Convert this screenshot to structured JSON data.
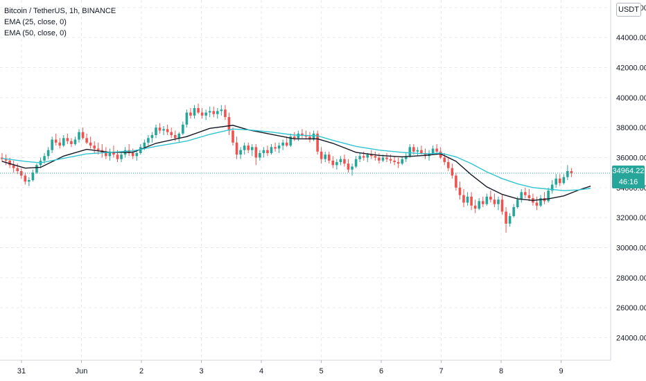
{
  "legend": {
    "symbol": "Bitcoin / TetherUS, 1h, BINANCE",
    "ema25": "EMA (25, close, 0)",
    "ema50": "EMA (50, close, 0)"
  },
  "currency": "USDT",
  "last_price": {
    "value": "34964.22",
    "countdown": "46:16"
  },
  "colors": {
    "up": "#26a69a",
    "down": "#ef5350",
    "ema25": "#131722",
    "ema50": "#2ec4d0",
    "grid": "#e8eaed",
    "axis_text": "#131722",
    "last_price_line": "#26a69a"
  },
  "chart_data": {
    "type": "candlestick",
    "title": "Bitcoin / TetherUS, 1h, BINANCE",
    "ylim": [
      22500,
      46500
    ],
    "y_ticks": [
      "24000.00",
      "26000.00",
      "28000.00",
      "30000.00",
      "32000.00",
      "34000.00",
      "36000.00",
      "38000.00",
      "40000.00",
      "42000.00",
      "44000.00",
      "46000.00"
    ],
    "x_ticks": [
      {
        "label": "31",
        "day": 0
      },
      {
        "label": "Jun",
        "day": 1
      },
      {
        "label": "2",
        "day": 2
      },
      {
        "label": "3",
        "day": 3
      },
      {
        "label": "4",
        "day": 4
      },
      {
        "label": "5",
        "day": 5
      },
      {
        "label": "6",
        "day": 6
      },
      {
        "label": "7",
        "day": 7
      },
      {
        "label": "8",
        "day": 8
      },
      {
        "label": "9",
        "day": 9
      }
    ],
    "last_price": 34964.22,
    "candles": [
      [
        36000,
        36300,
        35700,
        35900
      ],
      [
        35900,
        36200,
        35500,
        35800
      ],
      [
        35800,
        36000,
        35300,
        35500
      ],
      [
        35500,
        35800,
        35000,
        35300
      ],
      [
        35300,
        35600,
        34900,
        35100
      ],
      [
        35100,
        35300,
        34600,
        34800
      ],
      [
        34800,
        35000,
        34200,
        34400
      ],
      [
        34400,
        34700,
        34100,
        34500
      ],
      [
        34500,
        35200,
        34400,
        35000
      ],
      [
        35000,
        35600,
        34900,
        35500
      ],
      [
        35500,
        36000,
        35300,
        35800
      ],
      [
        35800,
        36300,
        35600,
        36100
      ],
      [
        36100,
        36700,
        35900,
        36500
      ],
      [
        36500,
        37400,
        36300,
        37200
      ],
      [
        37200,
        37600,
        36800,
        37000
      ],
      [
        37000,
        37300,
        36600,
        36800
      ],
      [
        36800,
        37500,
        36700,
        37300
      ],
      [
        37300,
        37600,
        36900,
        37100
      ],
      [
        37100,
        37300,
        36700,
        36900
      ],
      [
        36900,
        37400,
        36800,
        37200
      ],
      [
        37200,
        37900,
        37000,
        37700
      ],
      [
        37700,
        38000,
        37200,
        37300
      ],
      [
        37300,
        37600,
        36900,
        37000
      ],
      [
        37000,
        37400,
        36600,
        36800
      ],
      [
        36800,
        37100,
        36300,
        36600
      ],
      [
        36600,
        37000,
        36200,
        36500
      ],
      [
        36500,
        36900,
        36000,
        36300
      ],
      [
        36300,
        36700,
        35900,
        36100
      ],
      [
        36100,
        36600,
        35800,
        36400
      ],
      [
        36400,
        36800,
        36000,
        36200
      ],
      [
        36200,
        36500,
        35700,
        35900
      ],
      [
        35900,
        36400,
        35700,
        36200
      ],
      [
        36200,
        36700,
        36000,
        36500
      ],
      [
        36500,
        36900,
        36100,
        36300
      ],
      [
        36300,
        36600,
        35900,
        36100
      ],
      [
        36100,
        36500,
        35800,
        36300
      ],
      [
        36300,
        36900,
        36200,
        36700
      ],
      [
        36700,
        37200,
        36500,
        37000
      ],
      [
        37000,
        37500,
        36800,
        37300
      ],
      [
        37300,
        37700,
        37000,
        37500
      ],
      [
        37500,
        38200,
        37300,
        38000
      ],
      [
        38000,
        38300,
        37600,
        37800
      ],
      [
        37800,
        38100,
        37500,
        37900
      ],
      [
        37900,
        38200,
        37500,
        37700
      ],
      [
        37700,
        38000,
        37300,
        37500
      ],
      [
        37500,
        37800,
        37100,
        37300
      ],
      [
        37300,
        37700,
        37000,
        37600
      ],
      [
        37600,
        38400,
        37500,
        38200
      ],
      [
        38200,
        39200,
        38000,
        39000
      ],
      [
        39000,
        39300,
        38600,
        38800
      ],
      [
        38800,
        39500,
        38600,
        39300
      ],
      [
        39300,
        39600,
        38900,
        39000
      ],
      [
        39000,
        39300,
        38600,
        38800
      ],
      [
        38800,
        39200,
        38500,
        39000
      ],
      [
        39000,
        39400,
        38700,
        39100
      ],
      [
        39100,
        39400,
        38700,
        38900
      ],
      [
        38900,
        39300,
        38600,
        39100
      ],
      [
        39100,
        39500,
        38800,
        39200
      ],
      [
        39200,
        39500,
        38500,
        38700
      ],
      [
        38700,
        39000,
        37500,
        37800
      ],
      [
        37800,
        38000,
        36800,
        37000
      ],
      [
        37000,
        37400,
        35900,
        36200
      ],
      [
        36200,
        36700,
        35900,
        36500
      ],
      [
        36500,
        37000,
        36200,
        36800
      ],
      [
        36800,
        37000,
        36300,
        36500
      ],
      [
        36500,
        36900,
        36100,
        36700
      ],
      [
        36700,
        36900,
        35500,
        36000
      ],
      [
        36000,
        36500,
        35800,
        36300
      ],
      [
        36300,
        36700,
        36000,
        36500
      ],
      [
        36500,
        36800,
        36100,
        36300
      ],
      [
        36300,
        36900,
        36200,
        36700
      ],
      [
        36700,
        37000,
        36400,
        36600
      ],
      [
        36600,
        37000,
        36300,
        36800
      ],
      [
        36800,
        37200,
        36500,
        37000
      ],
      [
        37000,
        37400,
        36700,
        36800
      ],
      [
        36800,
        37600,
        36700,
        37400
      ],
      [
        37400,
        37700,
        37100,
        37300
      ],
      [
        37300,
        37800,
        37100,
        37600
      ],
      [
        37600,
        37900,
        37300,
        37500
      ],
      [
        37500,
        37800,
        37200,
        37400
      ],
      [
        37400,
        37700,
        37000,
        37200
      ],
      [
        37200,
        37800,
        37100,
        37600
      ],
      [
        37600,
        37800,
        36200,
        36400
      ],
      [
        36400,
        36700,
        35600,
        35900
      ],
      [
        35900,
        36400,
        35700,
        36200
      ],
      [
        36200,
        36400,
        35600,
        35800
      ],
      [
        35800,
        36100,
        35300,
        35500
      ],
      [
        35500,
        35900,
        35200,
        35700
      ],
      [
        35700,
        36100,
        35500,
        35900
      ],
      [
        35900,
        36200,
        35400,
        35600
      ],
      [
        35600,
        35900,
        35000,
        35200
      ],
      [
        35200,
        35600,
        34800,
        35400
      ],
      [
        35400,
        36100,
        35300,
        35900
      ],
      [
        35900,
        36300,
        35700,
        36100
      ],
      [
        36100,
        36400,
        35800,
        36000
      ],
      [
        36000,
        36300,
        35700,
        36200
      ],
      [
        36200,
        36500,
        35900,
        36100
      ],
      [
        36100,
        36400,
        35800,
        36000
      ],
      [
        36000,
        36300,
        35600,
        35800
      ],
      [
        35800,
        36200,
        35700,
        36000
      ],
      [
        36000,
        36300,
        35700,
        35900
      ],
      [
        35900,
        36200,
        35600,
        35800
      ],
      [
        35800,
        36100,
        35500,
        35700
      ],
      [
        35700,
        36000,
        35300,
        35600
      ],
      [
        35600,
        36100,
        35500,
        35900
      ],
      [
        35900,
        36300,
        35700,
        36100
      ],
      [
        36100,
        36900,
        36000,
        36700
      ],
      [
        36700,
        36900,
        36200,
        36400
      ],
      [
        36400,
        36700,
        36100,
        36500
      ],
      [
        36500,
        36800,
        36200,
        36300
      ],
      [
        36300,
        36600,
        35900,
        36100
      ],
      [
        36100,
        36500,
        35800,
        36300
      ],
      [
        36300,
        36800,
        36200,
        36600
      ],
      [
        36600,
        36900,
        36300,
        36400
      ],
      [
        36400,
        36700,
        35900,
        36000
      ],
      [
        36000,
        36300,
        35500,
        35700
      ],
      [
        35700,
        36000,
        35100,
        35300
      ],
      [
        35300,
        35600,
        34600,
        34800
      ],
      [
        34800,
        35000,
        33800,
        34000
      ],
      [
        34000,
        34400,
        33200,
        33500
      ],
      [
        33500,
        33900,
        32700,
        33000
      ],
      [
        33000,
        33700,
        32800,
        33400
      ],
      [
        33400,
        33700,
        32500,
        32800
      ],
      [
        32800,
        33200,
        32300,
        32600
      ],
      [
        32600,
        33300,
        32500,
        33100
      ],
      [
        33100,
        33400,
        32700,
        32900
      ],
      [
        32900,
        33600,
        32800,
        33400
      ],
      [
        33400,
        33800,
        33000,
        33200
      ],
      [
        33200,
        33600,
        32700,
        32900
      ],
      [
        32900,
        33400,
        32500,
        33200
      ],
      [
        33200,
        33500,
        32200,
        32400
      ],
      [
        32400,
        32700,
        31000,
        31600
      ],
      [
        31600,
        32300,
        31400,
        32100
      ],
      [
        32100,
        32900,
        32000,
        32700
      ],
      [
        32700,
        33400,
        32600,
        33200
      ],
      [
        33200,
        33900,
        33000,
        33700
      ],
      [
        33700,
        34000,
        33300,
        33500
      ],
      [
        33500,
        33900,
        33100,
        33300
      ],
      [
        33300,
        33600,
        32800,
        33000
      ],
      [
        33000,
        33400,
        32500,
        32800
      ],
      [
        32800,
        33500,
        32700,
        33300
      ],
      [
        33300,
        33700,
        32900,
        33100
      ],
      [
        33100,
        34000,
        33000,
        33800
      ],
      [
        33800,
        34500,
        33600,
        34200
      ],
      [
        34200,
        34900,
        34000,
        34600
      ],
      [
        34600,
        34900,
        34100,
        34300
      ],
      [
        34300,
        34900,
        34200,
        34700
      ],
      [
        34700,
        35500,
        34500,
        35100
      ],
      [
        35100,
        35300,
        34700,
        34964
      ]
    ],
    "series": [
      {
        "name": "EMA (25, close, 0)",
        "points": [
          [
            0,
            35750
          ],
          [
            6,
            35300
          ],
          [
            10,
            35350
          ],
          [
            16,
            36100
          ],
          [
            22,
            36550
          ],
          [
            28,
            36350
          ],
          [
            34,
            36350
          ],
          [
            40,
            36950
          ],
          [
            48,
            37400
          ],
          [
            54,
            37950
          ],
          [
            60,
            38150
          ],
          [
            64,
            37850
          ],
          [
            70,
            37550
          ],
          [
            76,
            37250
          ],
          [
            82,
            37250
          ],
          [
            86,
            36950
          ],
          [
            92,
            36350
          ],
          [
            98,
            36150
          ],
          [
            104,
            36050
          ],
          [
            110,
            36150
          ],
          [
            114,
            36250
          ],
          [
            118,
            35750
          ],
          [
            122,
            34850
          ],
          [
            126,
            34050
          ],
          [
            130,
            33550
          ],
          [
            134,
            33250
          ],
          [
            138,
            33150
          ],
          [
            142,
            33250
          ],
          [
            146,
            33450
          ],
          [
            150,
            33850
          ],
          [
            153,
            34100
          ]
        ]
      },
      {
        "name": "EMA (50, close, 0)",
        "points": [
          [
            0,
            35950
          ],
          [
            6,
            35750
          ],
          [
            10,
            35650
          ],
          [
            16,
            35950
          ],
          [
            22,
            36250
          ],
          [
            28,
            36350
          ],
          [
            34,
            36450
          ],
          [
            40,
            36750
          ],
          [
            48,
            37100
          ],
          [
            54,
            37550
          ],
          [
            60,
            37900
          ],
          [
            64,
            37850
          ],
          [
            70,
            37700
          ],
          [
            76,
            37500
          ],
          [
            82,
            37450
          ],
          [
            86,
            37150
          ],
          [
            92,
            36750
          ],
          [
            98,
            36500
          ],
          [
            104,
            36350
          ],
          [
            110,
            36250
          ],
          [
            114,
            36300
          ],
          [
            118,
            36050
          ],
          [
            122,
            35600
          ],
          [
            126,
            35050
          ],
          [
            130,
            34600
          ],
          [
            134,
            34250
          ],
          [
            138,
            34000
          ],
          [
            142,
            33900
          ],
          [
            146,
            33800
          ],
          [
            150,
            33850
          ],
          [
            153,
            33950
          ]
        ]
      }
    ]
  }
}
